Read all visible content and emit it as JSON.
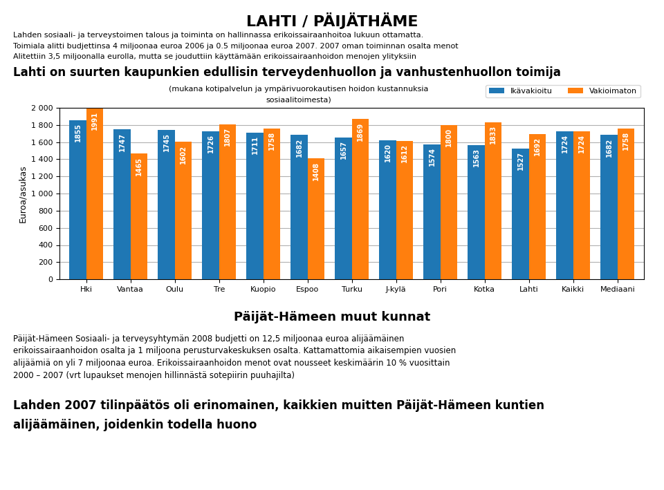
{
  "chart_data": {
    "type": "bar",
    "title": "LAHTI / PÄIJÄTHÄME",
    "subtitle": "Lahti on suurten kaupunkien edullisin terveydenhuollon ja vanhustenhuollon toimija",
    "annotations": [
      "Lahden sosiaali- ja terveystoimen talous ja toiminta on hallinnassa erikoissairaanhoitoa lukuun ottamatta.",
      "Toimiala alitti budjettinsa 4 miljoonaa euroa 2006 ja 0.5 miljoonaa euroa 2007. 2007 oman toiminnan osalta menot",
      "Alitettiin 3,5 miljoonalla eurolla, mutta se jouduttiin käyttämään erikoissairaanhoidon menojen ylityksiin",
      "(mukana kotipalvelun ja ympärivuorokautisen hoidon kustannuksia",
      "sosiaalitoimesta)",
      "Päijät-Hämeen muut kunnat",
      "Päijät-Hämeen Sosiaali- ja terveysyhtymän 2008 budjetti on 12,5 miljoonaa euroa alijäämäinen",
      "erikoissairaanhoidon osalta ja 1 miljoona perusturvakeskuksen osalta. Kattamattomia aikaisempien vuosien",
      "alijäämiä on yli 7 miljoonaa euroa. Erikoissairaanhoidon menot ovat nousseet keskimäärin 10 % vuosittain",
      "2000 – 2007 (vrt lupaukset menojen hillinnästä sotepiirin puuhajilta)",
      "Lahden 2007 tilinpäätös oli erinomainen, kaikkien muitten Päijät-Hämeen kuntien",
      "alijäämäinen, joidenkin todella huono"
    ],
    "ylabel": "Euroa/asukas",
    "categories": [
      "Hki",
      "Vantaa",
      "Oulu",
      "Tre",
      "Kuopio",
      "Espoo",
      "Turku",
      "J-kylä",
      "Pori",
      "Kotka",
      "Lahti",
      "Kaikki",
      "Mediaani"
    ],
    "series": [
      {
        "name": "Ikävakioitu",
        "values": [
          1855,
          1747,
          1745,
          1726,
          1711,
          1682,
          1657,
          1620,
          1574,
          1563,
          1527,
          1724,
          1682
        ]
      },
      {
        "name": "Vakioimaton",
        "values": [
          1991,
          1465,
          1602,
          1807,
          1758,
          1408,
          1869,
          1612,
          1800,
          1833,
          1692,
          1724,
          1758
        ]
      }
    ],
    "ylim": [
      0,
      2000
    ],
    "yticks": [
      0,
      200,
      400,
      600,
      800,
      {
        "value": 1000,
        "label": "1 000"
      },
      {
        "value": 1200,
        "label": "1 200"
      },
      {
        "value": 1400,
        "label": "1 400"
      },
      {
        "value": 1600,
        "label": "1 600"
      },
      {
        "value": 1800,
        "label": "1 800"
      },
      {
        "value": 2000,
        "label": "2 000"
      }
    ],
    "grid": true,
    "legend": "upper right",
    "data_labels": true
  }
}
